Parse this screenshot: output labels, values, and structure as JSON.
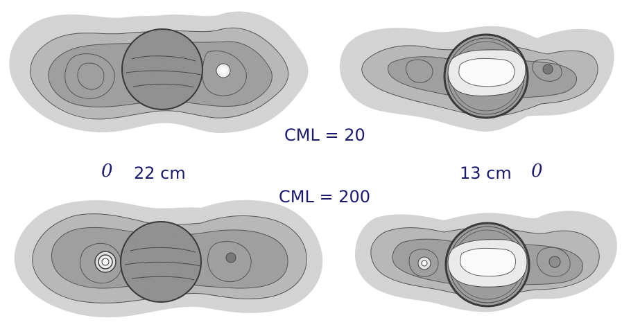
{
  "labels": {
    "cml_top": "CML = 20",
    "cml_bottom": "CML = 200",
    "left_zero": "0",
    "left_wavelength": "22 cm",
    "right_wavelength": "13 cm",
    "right_zero": "0"
  },
  "colors": {
    "outer_halo": "#d6d6d6",
    "mid_band": "#b8b8b8",
    "inner_band": "#999999",
    "core": "#8a8a8a",
    "planet_22cm": "#8c8c8c",
    "planet_13cm_bright": "#eeeeee",
    "contour_line": "#333333",
    "label_text": "#1a1a6e"
  },
  "panels": [
    {
      "id": "top-left",
      "wavelength": "22 cm",
      "cml": "CML = 20"
    },
    {
      "id": "top-right",
      "wavelength": "13 cm",
      "cml": "CML = 20"
    },
    {
      "id": "bottom-left",
      "wavelength": "22 cm",
      "cml": "CML = 200"
    },
    {
      "id": "bottom-right",
      "wavelength": "13 cm",
      "cml": "CML = 200"
    }
  ]
}
